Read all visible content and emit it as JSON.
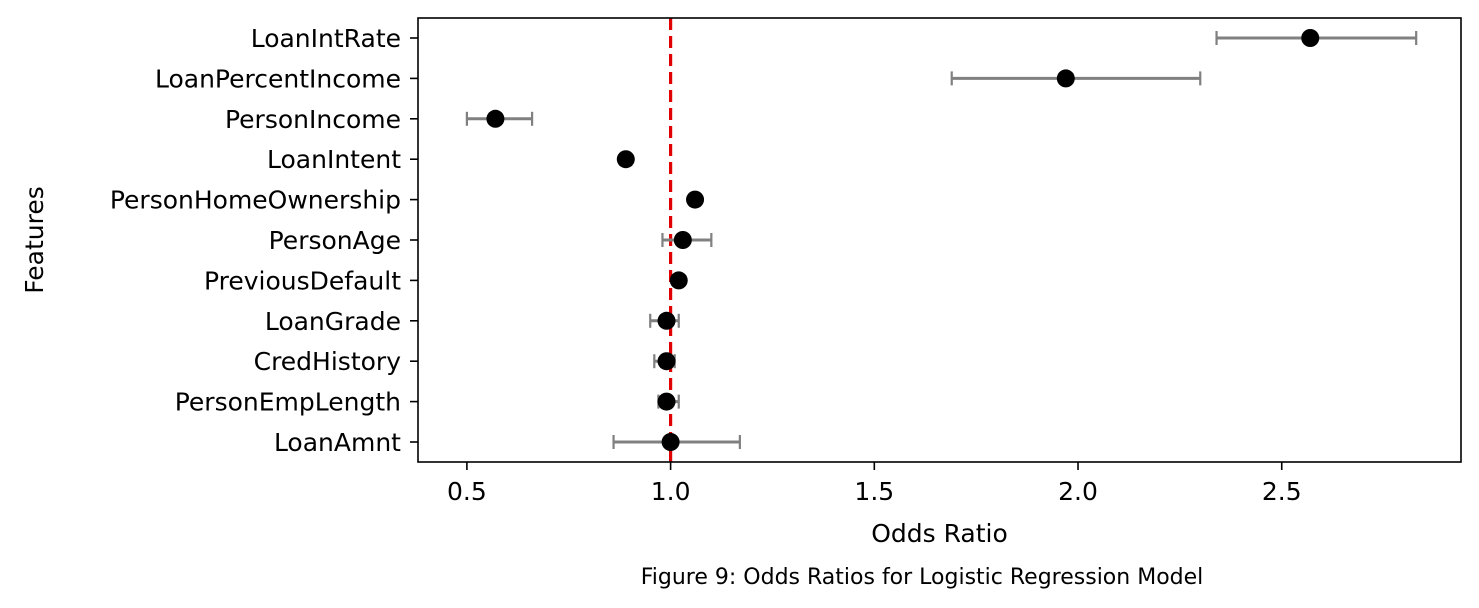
{
  "chart_data": {
    "type": "scatter",
    "subtype": "odds-ratio-forest-plot",
    "caption": "Figure 9: Odds Ratios for Logistic Regression Model",
    "xlabel": "Odds Ratio",
    "ylabel": "Features",
    "xlim": [
      0.38,
      2.94
    ],
    "xticks": [
      0.5,
      1.0,
      1.5,
      2.0,
      2.5
    ],
    "xtick_labels": [
      "0.5",
      "1.0",
      "1.5",
      "2.0",
      "2.5"
    ],
    "reference_line": {
      "x": 1.0,
      "color": "#e00000",
      "style": "dashed"
    },
    "grid": false,
    "point_color": "#000000",
    "errorbar_color": "#808080",
    "features": [
      {
        "label": "LoanIntRate",
        "or": 2.57,
        "lo": 2.34,
        "hi": 2.83
      },
      {
        "label": "LoanPercentIncome",
        "or": 1.97,
        "lo": 1.69,
        "hi": 2.3
      },
      {
        "label": "PersonIncome",
        "or": 0.57,
        "lo": 0.5,
        "hi": 0.66
      },
      {
        "label": "LoanIntent",
        "or": 0.89,
        "lo": 0.88,
        "hi": 0.9
      },
      {
        "label": "PersonHomeOwnership",
        "or": 1.06,
        "lo": 1.05,
        "hi": 1.07
      },
      {
        "label": "PersonAge",
        "or": 1.03,
        "lo": 0.98,
        "hi": 1.1
      },
      {
        "label": "PreviousDefault",
        "or": 1.02,
        "lo": 1.01,
        "hi": 1.03
      },
      {
        "label": "LoanGrade",
        "or": 0.99,
        "lo": 0.95,
        "hi": 1.02
      },
      {
        "label": "CredHistory",
        "or": 0.99,
        "lo": 0.96,
        "hi": 1.01
      },
      {
        "label": "PersonEmpLength",
        "or": 0.99,
        "lo": 0.97,
        "hi": 1.02
      },
      {
        "label": "LoanAmnt",
        "or": 1.0,
        "lo": 0.86,
        "hi": 1.17
      }
    ]
  }
}
